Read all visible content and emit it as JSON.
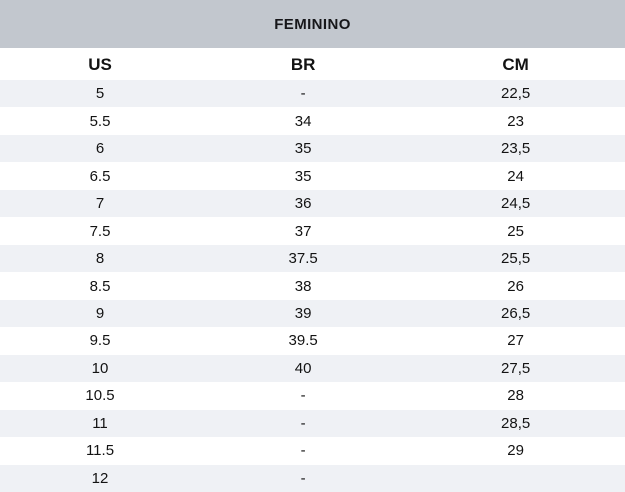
{
  "title": "FEMININO",
  "colors": {
    "title_band_bg": "#c2c7ce",
    "stripe_row_bg": "#eff1f5",
    "row_bg": "#ffffff",
    "text": "#131313"
  },
  "table": {
    "columns": [
      "US",
      "BR",
      "CM"
    ],
    "rows": [
      {
        "us": "5",
        "br": "-",
        "cm": "22,5"
      },
      {
        "us": "5.5",
        "br": "34",
        "cm": "23"
      },
      {
        "us": "6",
        "br": "35",
        "cm": "23,5"
      },
      {
        "us": "6.5",
        "br": "35",
        "cm": "24"
      },
      {
        "us": "7",
        "br": "36",
        "cm": "24,5"
      },
      {
        "us": "7.5",
        "br": "37",
        "cm": "25"
      },
      {
        "us": "8",
        "br": "37.5",
        "cm": "25,5"
      },
      {
        "us": "8.5",
        "br": "38",
        "cm": "26"
      },
      {
        "us": "9",
        "br": "39",
        "cm": "26,5"
      },
      {
        "us": "9.5",
        "br": "39.5",
        "cm": "27"
      },
      {
        "us": "10",
        "br": "40",
        "cm": "27,5"
      },
      {
        "us": "10.5",
        "br": "-",
        "cm": "28"
      },
      {
        "us": "11",
        "br": "-",
        "cm": "28,5"
      },
      {
        "us": "11.5",
        "br": "-",
        "cm": "29"
      },
      {
        "us": "12",
        "br": "-",
        "cm": ""
      }
    ]
  },
  "chart_data": {
    "type": "table",
    "title": "FEMININO",
    "columns": [
      "US",
      "BR",
      "CM"
    ],
    "rows": [
      [
        "5",
        "-",
        "22,5"
      ],
      [
        "5.5",
        "34",
        "23"
      ],
      [
        "6",
        "35",
        "23,5"
      ],
      [
        "6.5",
        "35",
        "24"
      ],
      [
        "7",
        "36",
        "24,5"
      ],
      [
        "7.5",
        "37",
        "25"
      ],
      [
        "8",
        "37.5",
        "25,5"
      ],
      [
        "8.5",
        "38",
        "26"
      ],
      [
        "9",
        "39",
        "26,5"
      ],
      [
        "9.5",
        "39.5",
        "27"
      ],
      [
        "10",
        "40",
        "27,5"
      ],
      [
        "10.5",
        "-",
        "28"
      ],
      [
        "11",
        "-",
        "28,5"
      ],
      [
        "11.5",
        "-",
        "29"
      ],
      [
        "12",
        "-",
        ""
      ]
    ],
    "layout": {
      "striped": true,
      "stripe_rows": "odd",
      "header_band": "FEMININO"
    }
  }
}
